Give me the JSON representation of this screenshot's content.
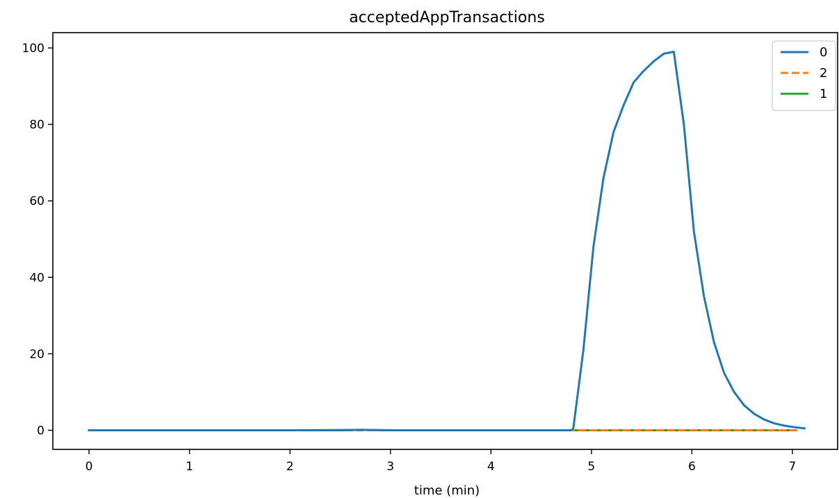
{
  "chart_data": {
    "type": "line",
    "title": "acceptedAppTransactions",
    "xlabel": "time (min)",
    "ylabel": "",
    "xlim": [
      -0.36,
      7.45
    ],
    "ylim": [
      -5,
      104
    ],
    "xticks": [
      0,
      1,
      2,
      3,
      4,
      5,
      6,
      7
    ],
    "yticks": [
      0,
      20,
      40,
      60,
      80,
      100
    ],
    "grid": false,
    "legend_position": "top-right",
    "series": [
      {
        "name": "0",
        "color": "#1f77b4",
        "dash": "solid",
        "x": [
          0,
          0.5,
          1,
          1.5,
          2,
          2.5,
          2.7,
          3,
          3.5,
          4,
          4.5,
          4.8,
          4.82,
          4.92,
          5.02,
          5.12,
          5.22,
          5.32,
          5.42,
          5.52,
          5.62,
          5.72,
          5.82,
          5.92,
          6.02,
          6.12,
          6.22,
          6.32,
          6.42,
          6.52,
          6.62,
          6.72,
          6.82,
          6.92,
          7.02,
          7.12
        ],
        "y": [
          0,
          0,
          0,
          0,
          0,
          0,
          0.1,
          0,
          0,
          0,
          0,
          0,
          0.5,
          21,
          48,
          66,
          78,
          85,
          91,
          94,
          96.5,
          98.5,
          99,
          80,
          52,
          35,
          23,
          15,
          10,
          6.5,
          4.3,
          2.8,
          1.8,
          1.2,
          0.8,
          0.5
        ]
      },
      {
        "name": "2",
        "color": "#ff7f0e",
        "dash": "dashed",
        "x": [
          0,
          1,
          2,
          3,
          4,
          5,
          6,
          7,
          7.05
        ],
        "y": [
          0,
          0,
          0,
          0,
          0,
          0,
          0,
          0,
          0
        ]
      },
      {
        "name": "1",
        "color": "#2ca02c",
        "dash": "solid",
        "x": [
          0,
          1,
          2,
          2.7,
          3,
          4,
          5,
          6,
          7
        ],
        "y": [
          0,
          0,
          0,
          0.1,
          0,
          0,
          0,
          0,
          0
        ]
      }
    ]
  }
}
